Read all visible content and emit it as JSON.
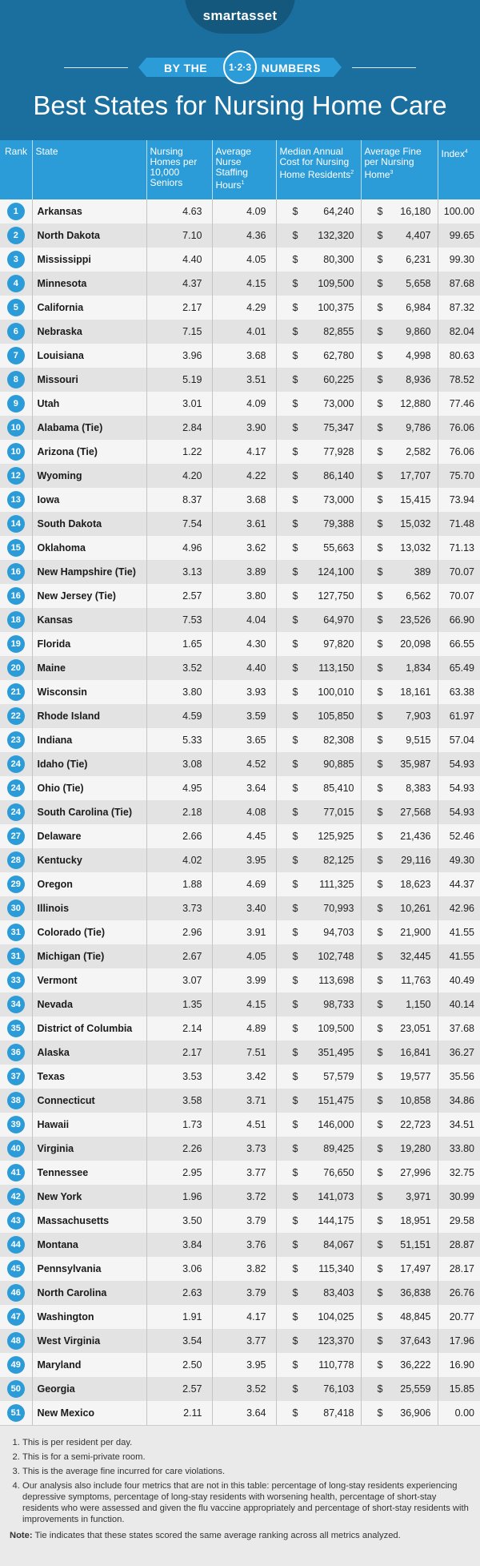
{
  "header": {
    "logo": "smartasset",
    "ribbon_left": "BY THE",
    "ribbon_badge": "1·2·3",
    "ribbon_right": "NUMBERS",
    "title": "Best States for Nursing Home Care"
  },
  "table": {
    "headers": {
      "rank": "Rank",
      "state": "State",
      "homes": "Nursing Homes per 10,000 Seniors",
      "staffing": "Average Nurse Staffing Hours",
      "staffing_sup": "1",
      "cost": "Median Annual Cost for Nursing Home Residents",
      "cost_sup": "2",
      "fine": "Average Fine per Nursing Home",
      "fine_sup": "3",
      "index": "Index",
      "index_sup": "4"
    },
    "currency_symbol": "$",
    "rows": [
      {
        "rank": "1",
        "state": "Arkansas",
        "homes": "4.63",
        "staffing": "4.09",
        "cost": "64,240",
        "fine": "16,180",
        "index": "100.00"
      },
      {
        "rank": "2",
        "state": "North Dakota",
        "homes": "7.10",
        "staffing": "4.36",
        "cost": "132,320",
        "fine": "4,407",
        "index": "99.65"
      },
      {
        "rank": "3",
        "state": "Mississippi",
        "homes": "4.40",
        "staffing": "4.05",
        "cost": "80,300",
        "fine": "6,231",
        "index": "99.30"
      },
      {
        "rank": "4",
        "state": "Minnesota",
        "homes": "4.37",
        "staffing": "4.15",
        "cost": "109,500",
        "fine": "5,658",
        "index": "87.68"
      },
      {
        "rank": "5",
        "state": "California",
        "homes": "2.17",
        "staffing": "4.29",
        "cost": "100,375",
        "fine": "6,984",
        "index": "87.32"
      },
      {
        "rank": "6",
        "state": "Nebraska",
        "homes": "7.15",
        "staffing": "4.01",
        "cost": "82,855",
        "fine": "9,860",
        "index": "82.04"
      },
      {
        "rank": "7",
        "state": "Louisiana",
        "homes": "3.96",
        "staffing": "3.68",
        "cost": "62,780",
        "fine": "4,998",
        "index": "80.63"
      },
      {
        "rank": "8",
        "state": "Missouri",
        "homes": "5.19",
        "staffing": "3.51",
        "cost": "60,225",
        "fine": "8,936",
        "index": "78.52"
      },
      {
        "rank": "9",
        "state": "Utah",
        "homes": "3.01",
        "staffing": "4.09",
        "cost": "73,000",
        "fine": "12,880",
        "index": "77.46"
      },
      {
        "rank": "10",
        "state": "Alabama (Tie)",
        "homes": "2.84",
        "staffing": "3.90",
        "cost": "75,347",
        "fine": "9,786",
        "index": "76.06"
      },
      {
        "rank": "10",
        "state": "Arizona (Tie)",
        "homes": "1.22",
        "staffing": "4.17",
        "cost": "77,928",
        "fine": "2,582",
        "index": "76.06"
      },
      {
        "rank": "12",
        "state": "Wyoming",
        "homes": "4.20",
        "staffing": "4.22",
        "cost": "86,140",
        "fine": "17,707",
        "index": "75.70"
      },
      {
        "rank": "13",
        "state": "Iowa",
        "homes": "8.37",
        "staffing": "3.68",
        "cost": "73,000",
        "fine": "15,415",
        "index": "73.94"
      },
      {
        "rank": "14",
        "state": "South Dakota",
        "homes": "7.54",
        "staffing": "3.61",
        "cost": "79,388",
        "fine": "15,032",
        "index": "71.48"
      },
      {
        "rank": "15",
        "state": "Oklahoma",
        "homes": "4.96",
        "staffing": "3.62",
        "cost": "55,663",
        "fine": "13,032",
        "index": "71.13"
      },
      {
        "rank": "16",
        "state": "New Hampshire (Tie)",
        "homes": "3.13",
        "staffing": "3.89",
        "cost": "124,100",
        "fine": "389",
        "index": "70.07"
      },
      {
        "rank": "16",
        "state": "New Jersey (Tie)",
        "homes": "2.57",
        "staffing": "3.80",
        "cost": "127,750",
        "fine": "6,562",
        "index": "70.07"
      },
      {
        "rank": "18",
        "state": "Kansas",
        "homes": "7.53",
        "staffing": "4.04",
        "cost": "64,970",
        "fine": "23,526",
        "index": "66.90"
      },
      {
        "rank": "19",
        "state": "Florida",
        "homes": "1.65",
        "staffing": "4.30",
        "cost": "97,820",
        "fine": "20,098",
        "index": "66.55"
      },
      {
        "rank": "20",
        "state": "Maine",
        "homes": "3.52",
        "staffing": "4.40",
        "cost": "113,150",
        "fine": "1,834",
        "index": "65.49"
      },
      {
        "rank": "21",
        "state": "Wisconsin",
        "homes": "3.80",
        "staffing": "3.93",
        "cost": "100,010",
        "fine": "18,161",
        "index": "63.38"
      },
      {
        "rank": "22",
        "state": "Rhode Island",
        "homes": "4.59",
        "staffing": "3.59",
        "cost": "105,850",
        "fine": "7,903",
        "index": "61.97"
      },
      {
        "rank": "23",
        "state": "Indiana",
        "homes": "5.33",
        "staffing": "3.65",
        "cost": "82,308",
        "fine": "9,515",
        "index": "57.04"
      },
      {
        "rank": "24",
        "state": "Idaho (Tie)",
        "homes": "3.08",
        "staffing": "4.52",
        "cost": "90,885",
        "fine": "35,987",
        "index": "54.93"
      },
      {
        "rank": "24",
        "state": "Ohio (Tie)",
        "homes": "4.95",
        "staffing": "3.64",
        "cost": "85,410",
        "fine": "8,383",
        "index": "54.93"
      },
      {
        "rank": "24",
        "state": "South Carolina (Tie)",
        "homes": "2.18",
        "staffing": "4.08",
        "cost": "77,015",
        "fine": "27,568",
        "index": "54.93"
      },
      {
        "rank": "27",
        "state": "Delaware",
        "homes": "2.66",
        "staffing": "4.45",
        "cost": "125,925",
        "fine": "21,436",
        "index": "52.46"
      },
      {
        "rank": "28",
        "state": "Kentucky",
        "homes": "4.02",
        "staffing": "3.95",
        "cost": "82,125",
        "fine": "29,116",
        "index": "49.30"
      },
      {
        "rank": "29",
        "state": "Oregon",
        "homes": "1.88",
        "staffing": "4.69",
        "cost": "111,325",
        "fine": "18,623",
        "index": "44.37"
      },
      {
        "rank": "30",
        "state": "Illinois",
        "homes": "3.73",
        "staffing": "3.40",
        "cost": "70,993",
        "fine": "10,261",
        "index": "42.96"
      },
      {
        "rank": "31",
        "state": "Colorado (Tie)",
        "homes": "2.96",
        "staffing": "3.91",
        "cost": "94,703",
        "fine": "21,900",
        "index": "41.55"
      },
      {
        "rank": "31",
        "state": "Michigan (Tie)",
        "homes": "2.67",
        "staffing": "4.05",
        "cost": "102,748",
        "fine": "32,445",
        "index": "41.55"
      },
      {
        "rank": "33",
        "state": "Vermont",
        "homes": "3.07",
        "staffing": "3.99",
        "cost": "113,698",
        "fine": "11,763",
        "index": "40.49"
      },
      {
        "rank": "34",
        "state": "Nevada",
        "homes": "1.35",
        "staffing": "4.15",
        "cost": "98,733",
        "fine": "1,150",
        "index": "40.14"
      },
      {
        "rank": "35",
        "state": "District of Columbia",
        "homes": "2.14",
        "staffing": "4.89",
        "cost": "109,500",
        "fine": "23,051",
        "index": "37.68"
      },
      {
        "rank": "36",
        "state": "Alaska",
        "homes": "2.17",
        "staffing": "7.51",
        "cost": "351,495",
        "fine": "16,841",
        "index": "36.27"
      },
      {
        "rank": "37",
        "state": "Texas",
        "homes": "3.53",
        "staffing": "3.42",
        "cost": "57,579",
        "fine": "19,577",
        "index": "35.56"
      },
      {
        "rank": "38",
        "state": "Connecticut",
        "homes": "3.58",
        "staffing": "3.71",
        "cost": "151,475",
        "fine": "10,858",
        "index": "34.86"
      },
      {
        "rank": "39",
        "state": "Hawaii",
        "homes": "1.73",
        "staffing": "4.51",
        "cost": "146,000",
        "fine": "22,723",
        "index": "34.51"
      },
      {
        "rank": "40",
        "state": "Virginia",
        "homes": "2.26",
        "staffing": "3.73",
        "cost": "89,425",
        "fine": "19,280",
        "index": "33.80"
      },
      {
        "rank": "41",
        "state": "Tennessee",
        "homes": "2.95",
        "staffing": "3.77",
        "cost": "76,650",
        "fine": "27,996",
        "index": "32.75"
      },
      {
        "rank": "42",
        "state": "New York",
        "homes": "1.96",
        "staffing": "3.72",
        "cost": "141,073",
        "fine": "3,971",
        "index": "30.99"
      },
      {
        "rank": "43",
        "state": "Massachusetts",
        "homes": "3.50",
        "staffing": "3.79",
        "cost": "144,175",
        "fine": "18,951",
        "index": "29.58"
      },
      {
        "rank": "44",
        "state": "Montana",
        "homes": "3.84",
        "staffing": "3.76",
        "cost": "84,067",
        "fine": "51,151",
        "index": "28.87"
      },
      {
        "rank": "45",
        "state": "Pennsylvania",
        "homes": "3.06",
        "staffing": "3.82",
        "cost": "115,340",
        "fine": "17,497",
        "index": "28.17"
      },
      {
        "rank": "46",
        "state": "North Carolina",
        "homes": "2.63",
        "staffing": "3.79",
        "cost": "83,403",
        "fine": "36,838",
        "index": "26.76"
      },
      {
        "rank": "47",
        "state": "Washington",
        "homes": "1.91",
        "staffing": "4.17",
        "cost": "104,025",
        "fine": "48,845",
        "index": "20.77"
      },
      {
        "rank": "48",
        "state": "West Virginia",
        "homes": "3.54",
        "staffing": "3.77",
        "cost": "123,370",
        "fine": "37,643",
        "index": "17.96"
      },
      {
        "rank": "49",
        "state": "Maryland",
        "homes": "2.50",
        "staffing": "3.95",
        "cost": "110,778",
        "fine": "36,222",
        "index": "16.90"
      },
      {
        "rank": "50",
        "state": "Georgia",
        "homes": "2.57",
        "staffing": "3.52",
        "cost": "76,103",
        "fine": "25,559",
        "index": "15.85"
      },
      {
        "rank": "51",
        "state": "New Mexico",
        "homes": "2.11",
        "staffing": "3.64",
        "cost": "87,418",
        "fine": "36,906",
        "index": "0.00"
      }
    ]
  },
  "footnotes": [
    "This is per resident per day.",
    "This is for a semi-private room.",
    "This is the average fine incurred for care violations.",
    "Our analysis also include four metrics that are not in this table: percentage of long-stay residents experiencing depressive symptoms, percentage of long-stay residents with worsening health, percentage of short-stay residents who were assessed and given the flu vaccine appropriately and percentage of short-stay residents with improvements in function."
  ],
  "note": {
    "label": "Note:",
    "text": "Tie indicates that these states scored the same average ranking across all metrics analyzed."
  },
  "colors": {
    "header_bg": "#1b6f9e",
    "accent": "#2b9cd8",
    "row_light": "#f5f5f5",
    "row_dark": "#e3e3e3"
  }
}
